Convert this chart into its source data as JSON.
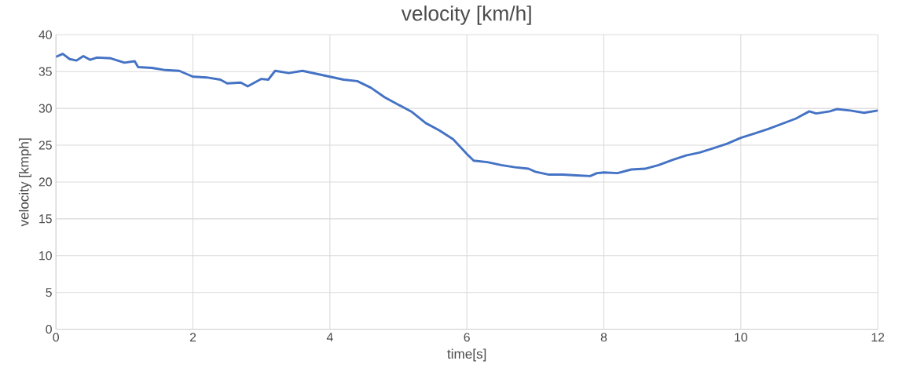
{
  "chart_data": {
    "type": "line",
    "title": "velocity [km/h]",
    "xlabel": "time[s]",
    "ylabel": "velocity [kmph]",
    "xlim": [
      0,
      12
    ],
    "xticks": [
      0,
      2,
      4,
      6,
      8,
      10,
      12
    ],
    "ylim": [
      0,
      40
    ],
    "yticks": [
      0,
      5,
      10,
      15,
      20,
      25,
      30,
      35,
      40
    ],
    "grid": true,
    "legend": false,
    "marker": "none",
    "line_style": "solid",
    "series": [
      {
        "color": "#4472c4",
        "x": [
          0,
          0.1,
          0.2,
          0.3,
          0.4,
          0.5,
          0.6,
          0.8,
          1.0,
          1.15,
          1.2,
          1.4,
          1.6,
          1.8,
          2.0,
          2.2,
          2.4,
          2.5,
          2.7,
          2.8,
          3.0,
          3.1,
          3.2,
          3.4,
          3.6,
          3.8,
          4.0,
          4.2,
          4.4,
          4.6,
          4.8,
          5.0,
          5.2,
          5.4,
          5.6,
          5.8,
          6.0,
          6.1,
          6.3,
          6.5,
          6.7,
          6.9,
          7.0,
          7.2,
          7.4,
          7.6,
          7.8,
          7.9,
          8.0,
          8.2,
          8.4,
          8.6,
          8.8,
          9.0,
          9.2,
          9.4,
          9.6,
          9.8,
          10.0,
          10.2,
          10.4,
          10.6,
          10.8,
          11.0,
          11.1,
          11.3,
          11.4,
          11.6,
          11.8,
          12.0
        ],
        "values": [
          37.0,
          37.4,
          36.7,
          36.5,
          37.1,
          36.6,
          36.9,
          36.8,
          36.2,
          36.4,
          35.6,
          35.5,
          35.2,
          35.1,
          34.3,
          34.2,
          33.9,
          33.4,
          33.5,
          33.0,
          34.0,
          33.9,
          35.1,
          34.8,
          35.1,
          34.7,
          34.3,
          33.9,
          33.7,
          32.8,
          31.5,
          30.5,
          29.5,
          28.0,
          27.0,
          25.8,
          23.8,
          22.9,
          22.7,
          22.3,
          22.0,
          21.8,
          21.4,
          21.0,
          21.0,
          20.9,
          20.8,
          21.2,
          21.3,
          21.2,
          21.7,
          21.8,
          22.3,
          23.0,
          23.6,
          24.0,
          24.6,
          25.2,
          26.0,
          26.6,
          27.2,
          27.9,
          28.6,
          29.6,
          29.3,
          29.6,
          29.9,
          29.7,
          29.4,
          29.7
        ]
      }
    ]
  }
}
